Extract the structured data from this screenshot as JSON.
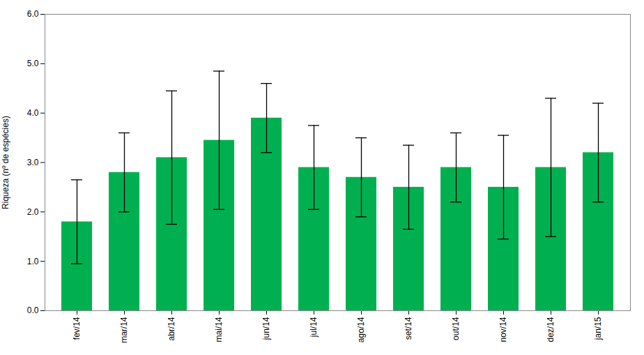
{
  "chart_data": {
    "type": "bar",
    "categories": [
      "fev/14",
      "mar/14",
      "abr/14",
      "mai/14",
      "jun/14",
      "jul/14",
      "ago/14",
      "set/14",
      "out/14",
      "nov/14",
      "dez/14",
      "jan/15"
    ],
    "values": [
      1.8,
      2.8,
      3.1,
      3.45,
      3.9,
      2.9,
      2.7,
      2.5,
      2.9,
      2.5,
      2.9,
      3.2
    ],
    "errors": [
      0.85,
      0.8,
      1.35,
      1.4,
      0.7,
      0.85,
      0.8,
      0.85,
      0.7,
      1.05,
      1.4,
      1.0
    ],
    "color": "#00b050",
    "ylabel": "Riqueza (nº de espécies)",
    "ylim": [
      0,
      6
    ],
    "yticks": [
      0,
      1,
      2,
      3,
      4,
      5,
      6
    ],
    "grid": false
  }
}
